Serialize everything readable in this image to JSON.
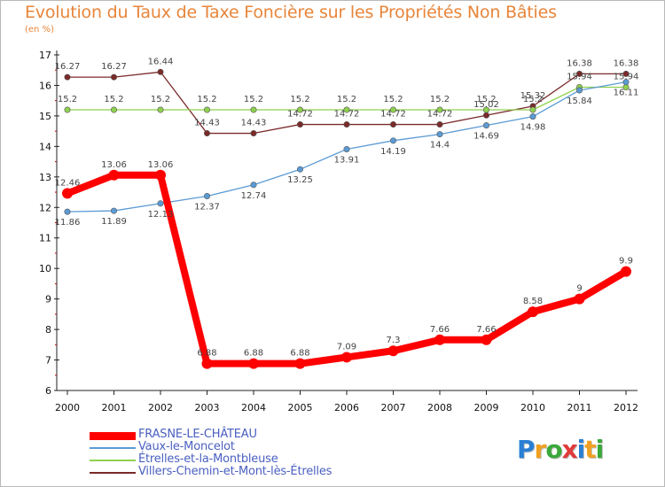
{
  "chart_data": {
    "type": "line",
    "title": "Evolution du Taux de Taxe Foncière sur les Propriétés Non Bâties",
    "subtitle": "(en %)",
    "x": [
      2000,
      2001,
      2002,
      2003,
      2004,
      2005,
      2006,
      2007,
      2008,
      2009,
      2010,
      2011,
      2012
    ],
    "x_tick_labels": [
      "2000",
      "2001",
      "2002",
      "2003",
      "2004",
      "2005",
      "2006",
      "2007",
      "2008",
      "2009",
      "2010",
      "2011",
      "2012"
    ],
    "ylim": [
      6,
      17
    ],
    "y_ticks": [
      6,
      7,
      8,
      9,
      10,
      11,
      12,
      13,
      14,
      15,
      16,
      17
    ],
    "grid": false,
    "legend_position": "bottom-left",
    "series": [
      {
        "name": "FRASNE-LE-CHÂTEAU",
        "color": "#ff0000",
        "emphasis": true,
        "values": [
          12.46,
          13.06,
          13.06,
          6.88,
          6.88,
          6.88,
          7.09,
          7.3,
          7.66,
          7.66,
          8.58,
          9,
          9.9
        ],
        "labels": [
          "12.46",
          "13.06",
          "13.06",
          "6.88",
          "6.88",
          "6.88",
          "7.09",
          "7.3",
          "7.66",
          "7.66",
          "8.58",
          "9",
          "9.9"
        ]
      },
      {
        "name": "Vaux-le-Moncelot",
        "color": "#5b9bd5",
        "values": [
          11.86,
          11.89,
          12.13,
          12.37,
          12.74,
          13.25,
          13.91,
          14.19,
          14.4,
          14.69,
          14.98,
          15.84,
          16.11
        ],
        "labels": [
          "11.86",
          "11.89",
          "12.13",
          "12.37",
          "12.74",
          "13.25",
          "13.91",
          "14.19",
          "14.4",
          "14.69",
          "14.98",
          "15.84",
          "16.11"
        ]
      },
      {
        "name": "Étrelles-et-la-Montbleuse",
        "color": "#8fd14f",
        "values": [
          15.2,
          15.2,
          15.2,
          15.2,
          15.2,
          15.2,
          15.2,
          15.2,
          15.2,
          15.2,
          15.2,
          15.94,
          15.94
        ],
        "labels": [
          "15.2",
          "15.2",
          "15.2",
          "15.2",
          "15.2",
          "15.2",
          "15.2",
          "15.2",
          "15.2",
          "15.2",
          "15.2",
          "15.94",
          "15.94"
        ]
      },
      {
        "name": "Villers-Chemin-et-Mont-lès-Étrelles",
        "color": "#7b2a2a",
        "values": [
          16.27,
          16.27,
          16.44,
          14.43,
          14.43,
          14.72,
          14.72,
          14.72,
          14.72,
          15.02,
          15.32,
          16.38,
          16.38
        ],
        "labels": [
          "16.27",
          "16.27",
          "16.44",
          "14.43",
          "14.43",
          "14.72",
          "14.72",
          "14.72",
          "14.72",
          "15.02",
          "15.32",
          "16.38",
          "16.38"
        ]
      }
    ]
  },
  "logo": {
    "text": "Proxiti",
    "colors": [
      "#2a7fd4",
      "#f0a020",
      "#3aa83a",
      "#e03a3a",
      "#2a7fd4",
      "#f0a020",
      "#3aa83a"
    ]
  }
}
